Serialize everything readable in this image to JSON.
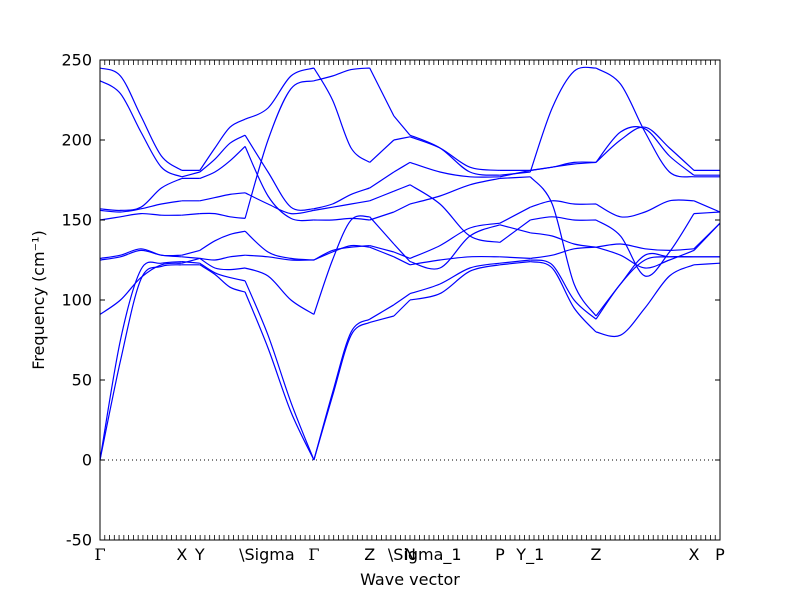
{
  "chart_data": {
    "type": "line",
    "title": "",
    "xlabel": "Wave vector",
    "ylabel": "Frequency (cm⁻¹)",
    "ylim": [
      -50,
      250
    ],
    "yticks": [
      -50,
      0,
      50,
      100,
      150,
      200,
      250
    ],
    "xlim": [
      0,
      1
    ],
    "grid": false,
    "legend": "none",
    "line_color": "#0000ff",
    "zero_line": true,
    "high_symmetry_points": [
      {
        "label": "Γ",
        "x": 0.0
      },
      {
        "label": "X",
        "x": 0.132
      },
      {
        "label": "Y",
        "x": 0.161
      },
      {
        "label": "\\Sigma",
        "x": 0.234
      },
      {
        "label": "Γ",
        "x": 0.345
      },
      {
        "label": "Z",
        "x": 0.435
      },
      {
        "label": "\\Sigma_1",
        "x": 0.474
      },
      {
        "label": "N",
        "x": 0.5
      },
      {
        "label": "P",
        "x": 0.645
      },
      {
        "label": "Y_1",
        "x": 0.694
      },
      {
        "label": "Z",
        "x": 0.8
      },
      {
        "label": "X",
        "x": 0.958
      },
      {
        "label": "P",
        "x": 1.0
      }
    ],
    "segments": [
      {
        "from": "Γ",
        "to": "X",
        "x0": 0.0,
        "x1": 0.132,
        "bands": [
          [
            0,
            62,
            113,
            121,
            122
          ],
          [
            0,
            75,
            119,
            123,
            124
          ],
          [
            91,
            100,
            114,
            122,
            123
          ],
          [
            125,
            127,
            131,
            128,
            127
          ],
          [
            126,
            128,
            132,
            128,
            128
          ],
          [
            150,
            152,
            154,
            153,
            153
          ],
          [
            156,
            155,
            157,
            160,
            162
          ],
          [
            157,
            156,
            158,
            170,
            176
          ],
          [
            237,
            229,
            205,
            183,
            177
          ],
          [
            245,
            240,
            215,
            190,
            181
          ]
        ]
      },
      {
        "from": "X",
        "to": "Y",
        "x0": 0.132,
        "x1": 0.161,
        "bands": [
          [
            122,
            122
          ],
          [
            124,
            123
          ],
          [
            123,
            126
          ],
          [
            127,
            126
          ],
          [
            128,
            131
          ],
          [
            153,
            154
          ],
          [
            162,
            162
          ],
          [
            176,
            176
          ],
          [
            177,
            180
          ],
          [
            181,
            181
          ]
        ]
      },
      {
        "from": "Y",
        "to": "\\Sigma",
        "x0": 0.161,
        "x1": 0.234,
        "bands": [
          [
            122,
            116,
            108,
            105
          ],
          [
            123,
            117,
            114,
            112
          ],
          [
            126,
            120,
            119,
            120
          ],
          [
            126,
            125,
            127,
            128
          ],
          [
            131,
            137,
            141,
            143
          ],
          [
            154,
            154,
            152,
            151
          ],
          [
            162,
            164,
            166,
            167
          ],
          [
            176,
            180,
            187,
            196
          ],
          [
            180,
            188,
            198,
            203
          ],
          [
            181,
            195,
            208,
            213
          ]
        ]
      },
      {
        "from": "\\Sigma",
        "to": "Γ",
        "x0": 0.234,
        "x1": 0.345,
        "bands": [
          [
            105,
            70,
            30,
            0
          ],
          [
            112,
            78,
            36,
            0
          ],
          [
            120,
            115,
            100,
            91
          ],
          [
            128,
            127,
            125,
            125
          ],
          [
            143,
            130,
            126,
            125
          ],
          [
            151,
            200,
            232,
            237
          ],
          [
            167,
            160,
            154,
            156
          ],
          [
            196,
            165,
            151,
            150
          ],
          [
            203,
            180,
            158,
            157
          ],
          [
            213,
            220,
            240,
            245
          ]
        ]
      },
      {
        "from": "Γ",
        "to": "Z",
        "x0": 0.345,
        "x1": 0.435,
        "bands": [
          [
            0,
            40,
            78,
            86
          ],
          [
            0,
            42,
            80,
            88
          ],
          [
            91,
            125,
            150,
            152
          ],
          [
            125,
            130,
            134,
            133
          ],
          [
            125,
            131,
            133,
            134
          ],
          [
            237,
            240,
            244,
            245
          ],
          [
            156,
            158,
            160,
            162
          ],
          [
            150,
            150,
            151,
            150
          ],
          [
            157,
            160,
            166,
            170
          ],
          [
            245,
            225,
            195,
            186
          ]
        ]
      },
      {
        "from": "Z",
        "to": "\\Sigma_1",
        "x0": 0.435,
        "x1": 0.474,
        "bands": [
          [
            86,
            90
          ],
          [
            88,
            97
          ],
          [
            152,
            135
          ],
          [
            133,
            127
          ],
          [
            134,
            130
          ],
          [
            245,
            215
          ],
          [
            162,
            168
          ],
          [
            150,
            155
          ],
          [
            170,
            180
          ],
          [
            186,
            200
          ]
        ]
      },
      {
        "from": "\\Sigma_1",
        "to": "N",
        "x0": 0.474,
        "x1": 0.5,
        "bands": [
          [
            90,
            100
          ],
          [
            97,
            104
          ],
          [
            135,
            124
          ],
          [
            127,
            122
          ],
          [
            130,
            126
          ],
          [
            215,
            203
          ],
          [
            168,
            172
          ],
          [
            155,
            160
          ],
          [
            180,
            186
          ],
          [
            200,
            202
          ]
        ]
      },
      {
        "from": "N",
        "to": "P",
        "x0": 0.5,
        "x1": 0.645,
        "bands": [
          [
            100,
            104,
            118,
            122
          ],
          [
            104,
            110,
            120,
            123
          ],
          [
            124,
            120,
            140,
            147
          ],
          [
            122,
            125,
            127,
            127
          ],
          [
            126,
            134,
            145,
            148
          ],
          [
            203,
            195,
            180,
            178
          ],
          [
            172,
            160,
            140,
            136
          ],
          [
            160,
            165,
            172,
            176
          ],
          [
            186,
            180,
            177,
            177
          ],
          [
            202,
            195,
            183,
            181
          ]
        ]
      },
      {
        "from": "P",
        "to": "Y_1",
        "x0": 0.645,
        "x1": 0.694,
        "bands": [
          [
            122,
            124
          ],
          [
            123,
            125
          ],
          [
            147,
            142
          ],
          [
            127,
            126
          ],
          [
            148,
            158
          ],
          [
            178,
            180
          ],
          [
            136,
            150
          ],
          [
            176,
            177
          ],
          [
            177,
            181
          ],
          [
            181,
            181
          ]
        ]
      },
      {
        "from": "Y_1",
        "to": "Z",
        "x0": 0.694,
        "x1": 0.8,
        "bands": [
          [
            124,
            120,
            95,
            80
          ],
          [
            125,
            122,
            100,
            88
          ],
          [
            142,
            140,
            135,
            133
          ],
          [
            126,
            128,
            132,
            133
          ],
          [
            158,
            162,
            160,
            160
          ],
          [
            180,
            220,
            243,
            245
          ],
          [
            150,
            152,
            150,
            150
          ],
          [
            177,
            160,
            110,
            90
          ],
          [
            181,
            183,
            185,
            186
          ],
          [
            181,
            183,
            186,
            186
          ]
        ]
      },
      {
        "from": "Z",
        "to": "X",
        "x0": 0.8,
        "x1": 0.958,
        "bands": [
          [
            80,
            78,
            95,
            115,
            122
          ],
          [
            88,
            110,
            125,
            127,
            127
          ],
          [
            133,
            128,
            120,
            125,
            131
          ],
          [
            133,
            135,
            132,
            131,
            132
          ],
          [
            160,
            152,
            155,
            162,
            162
          ],
          [
            245,
            235,
            205,
            180,
            177
          ],
          [
            150,
            140,
            115,
            130,
            154
          ],
          [
            90,
            110,
            128,
            127,
            127
          ],
          [
            186,
            205,
            207,
            190,
            178
          ],
          [
            186,
            200,
            208,
            195,
            181
          ]
        ]
      },
      {
        "from": "X",
        "to": "P",
        "x0": 0.958,
        "x1": 1.0,
        "bands": [
          [
            122,
            123
          ],
          [
            127,
            127
          ],
          [
            131,
            148
          ],
          [
            132,
            148
          ],
          [
            162,
            155
          ],
          [
            177,
            177
          ],
          [
            154,
            155
          ],
          [
            127,
            127
          ],
          [
            178,
            178
          ],
          [
            181,
            181
          ]
        ]
      }
    ]
  }
}
